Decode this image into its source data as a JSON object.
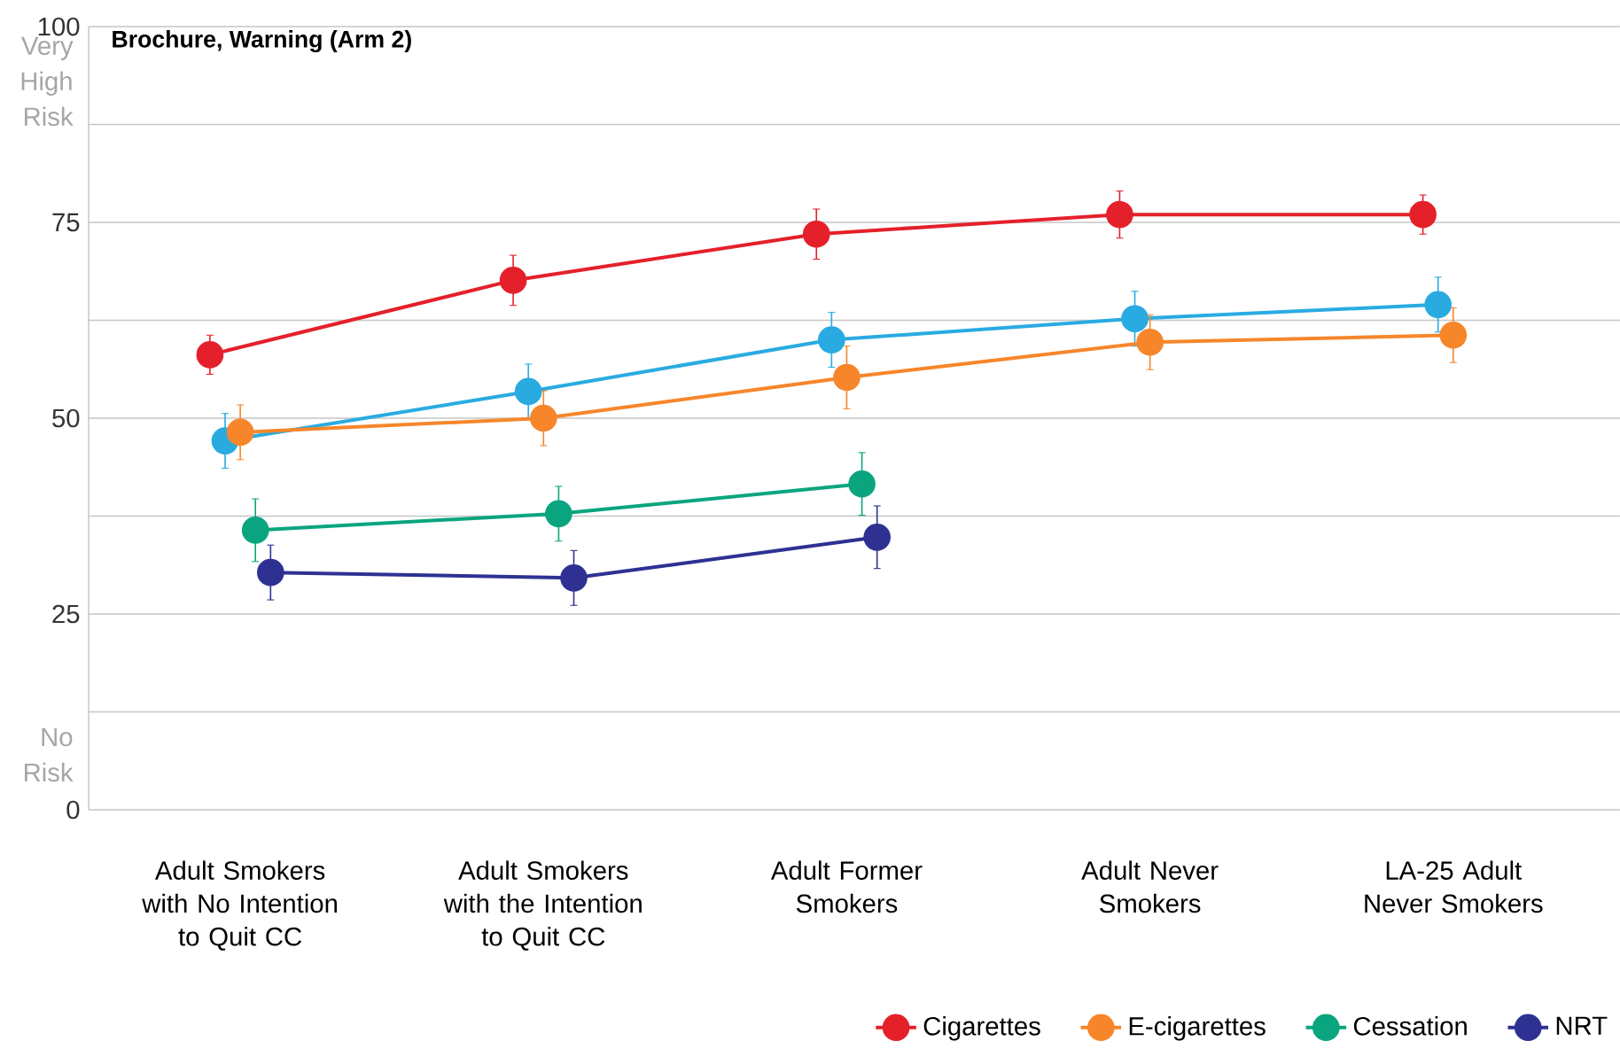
{
  "chart_data": {
    "type": "line",
    "title": "Brochure, Warning (Arm 2)",
    "categories": [
      "Adult Smokers with No Intention to Quit CC",
      "Adult Smokers with the Intention to Quit CC",
      "Adult Former Smokers",
      "Adult Never Smokers",
      "LA-25 Adult Never Smokers"
    ],
    "series": [
      {
        "name": "Cigarettes",
        "color": "#e4202a",
        "values": [
          58.1,
          67.6,
          73.5,
          76,
          76
        ],
        "errors": [
          2.5,
          3.2,
          3.2,
          3,
          2.5
        ]
      },
      {
        "color": "#29abe2",
        "values": [
          47.1,
          53.4,
          60,
          62.7,
          64.5
        ],
        "errors": [
          3.5,
          3.5,
          3.5,
          3.5,
          3.5
        ]
      },
      {
        "name": "E-cigarettes",
        "color": "#f7862b",
        "values": [
          48.2,
          50,
          55.2,
          59.7,
          60.6
        ],
        "errors": [
          3.5,
          3.5,
          4,
          3.5,
          3.5
        ]
      },
      {
        "name": "Cessation",
        "color": "#0aa57f",
        "values": [
          35.7,
          37.8,
          41.6,
          null,
          null
        ],
        "errors": [
          4,
          3.5,
          4,
          null,
          null
        ]
      },
      {
        "name": "NRT",
        "color": "#2e3192",
        "values": [
          30.3,
          29.6,
          34.8,
          null,
          null
        ],
        "errors": [
          3.5,
          3.5,
          4,
          null,
          null
        ]
      }
    ],
    "ylim": [
      0,
      100
    ],
    "yticks": [
      0,
      {
        "value": 12.5,
        "label": null
      },
      25,
      {
        "value": 37.5,
        "label": null
      },
      50,
      {
        "value": 62.5,
        "label": null
      },
      75,
      {
        "value": 87.5,
        "label": null
      },
      100
    ],
    "annotations": [
      "Very High Risk",
      "No Risk"
    ],
    "grid": "y",
    "legend": "bottom right",
    "marker": "circle",
    "line_style": "solid"
  }
}
